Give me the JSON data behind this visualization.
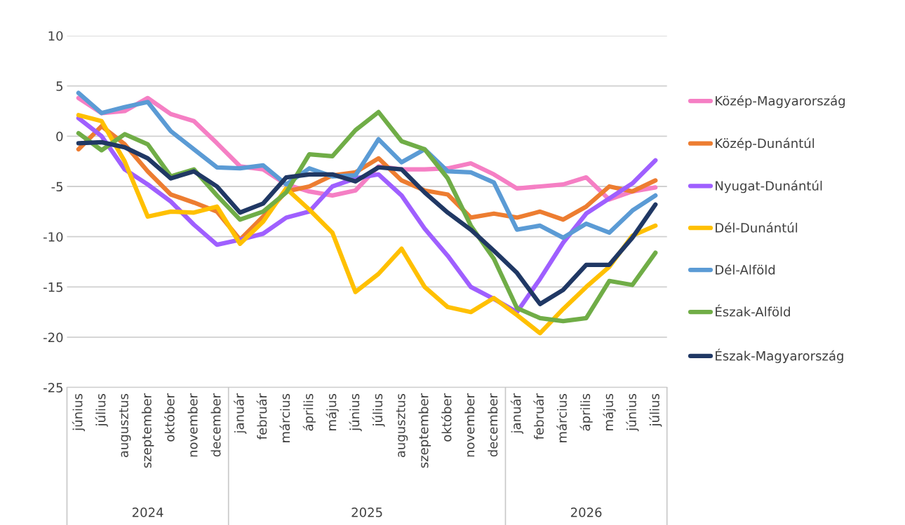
{
  "chart_data": {
    "type": "line",
    "categories": [
      "június",
      "július",
      "augusztus",
      "szeptember",
      "október",
      "november",
      "december",
      "január",
      "február",
      "március",
      "április",
      "május",
      "június",
      "július",
      "augusztus",
      "szeptember",
      "október",
      "november",
      "december",
      "január",
      "február",
      "március",
      "április",
      "május",
      "június",
      "július"
    ],
    "series": [
      {
        "name": "Közép-Magyarország",
        "color": "#f57fc4",
        "values": [
          3.8,
          2.3,
          2.5,
          3.8,
          2.2,
          1.5,
          -0.7,
          -3.0,
          -3.3,
          -4.8,
          -5.5,
          -5.9,
          -5.4,
          -3.0,
          -3.3,
          -3.3,
          -3.2,
          -2.7,
          -3.8,
          -5.2,
          -5.0,
          -4.8,
          -4.1,
          -6.3,
          -5.5,
          -5.1
        ]
      },
      {
        "name": "Közép-Dunántúl",
        "color": "#ed7d31",
        "values": [
          -1.3,
          1.0,
          -0.8,
          -3.5,
          -5.8,
          -6.6,
          -7.5,
          -10.3,
          -8.0,
          -5.5,
          -5.0,
          -3.9,
          -3.6,
          -2.2,
          -4.4,
          -5.4,
          -5.8,
          -8.1,
          -7.7,
          -8.1,
          -7.5,
          -8.3,
          -7.0,
          -5.0,
          -5.5,
          -4.4
        ]
      },
      {
        "name": "Nyugat-Dunántúl",
        "color": "#9f5fff",
        "values": [
          1.8,
          0.0,
          -3.3,
          -4.8,
          -6.5,
          -8.8,
          -10.8,
          -10.3,
          -9.7,
          -8.1,
          -7.5,
          -5.0,
          -4.2,
          -3.8,
          -5.9,
          -9.2,
          -11.9,
          -15.0,
          -16.2,
          -17.5,
          -14.2,
          -10.6,
          -7.7,
          -6.2,
          -4.7,
          -2.4
        ]
      },
      {
        "name": "Dél-Dunántúl",
        "color": "#ffc000",
        "values": [
          2.1,
          1.5,
          -2.5,
          -8.0,
          -7.5,
          -7.6,
          -7.0,
          -10.7,
          -8.5,
          -5.2,
          -7.3,
          -9.6,
          -15.5,
          -13.7,
          -11.2,
          -15.0,
          -17.0,
          -17.5,
          -16.1,
          -17.8,
          -19.6,
          -17.2,
          -15.0,
          -13.0,
          -9.9,
          -8.9
        ]
      },
      {
        "name": "Dél-Alföld",
        "color": "#5b9bd5",
        "values": [
          4.3,
          2.3,
          2.9,
          3.4,
          0.5,
          -1.3,
          -3.1,
          -3.2,
          -2.9,
          -4.8,
          -3.2,
          -4.0,
          -3.9,
          -0.3,
          -2.6,
          -1.3,
          -3.5,
          -3.6,
          -4.6,
          -9.3,
          -8.9,
          -10.1,
          -8.7,
          -9.6,
          -7.4,
          -5.9
        ]
      },
      {
        "name": "Észak-Alföld",
        "color": "#70ad47",
        "values": [
          0.3,
          -1.4,
          0.2,
          -0.8,
          -4.0,
          -3.3,
          -5.9,
          -8.3,
          -7.5,
          -5.6,
          -1.8,
          -2.0,
          0.6,
          2.4,
          -0.5,
          -1.3,
          -4.2,
          -8.9,
          -12.2,
          -17.1,
          -18.1,
          -18.4,
          -18.1,
          -14.4,
          -14.8,
          -11.6
        ]
      },
      {
        "name": "Észak-Magyarország",
        "color": "#203864",
        "values": [
          -0.7,
          -0.6,
          -1.1,
          -2.2,
          -4.2,
          -3.5,
          -5.0,
          -7.6,
          -6.7,
          -4.1,
          -3.8,
          -3.8,
          -4.5,
          -3.1,
          -3.3,
          -5.6,
          -7.6,
          -9.3,
          -11.4,
          -13.6,
          -16.7,
          -15.3,
          -12.8,
          -12.8,
          -10.1,
          -6.8
        ]
      }
    ],
    "annotations": [
      "2024",
      "2025",
      "2026"
    ],
    "ylim": [
      -25,
      10
    ],
    "yticks": [
      -25,
      -20,
      -15,
      -10,
      -5,
      0,
      5,
      10
    ],
    "grid": "y",
    "legend": "right",
    "marker": "none",
    "line_style": "solid"
  }
}
